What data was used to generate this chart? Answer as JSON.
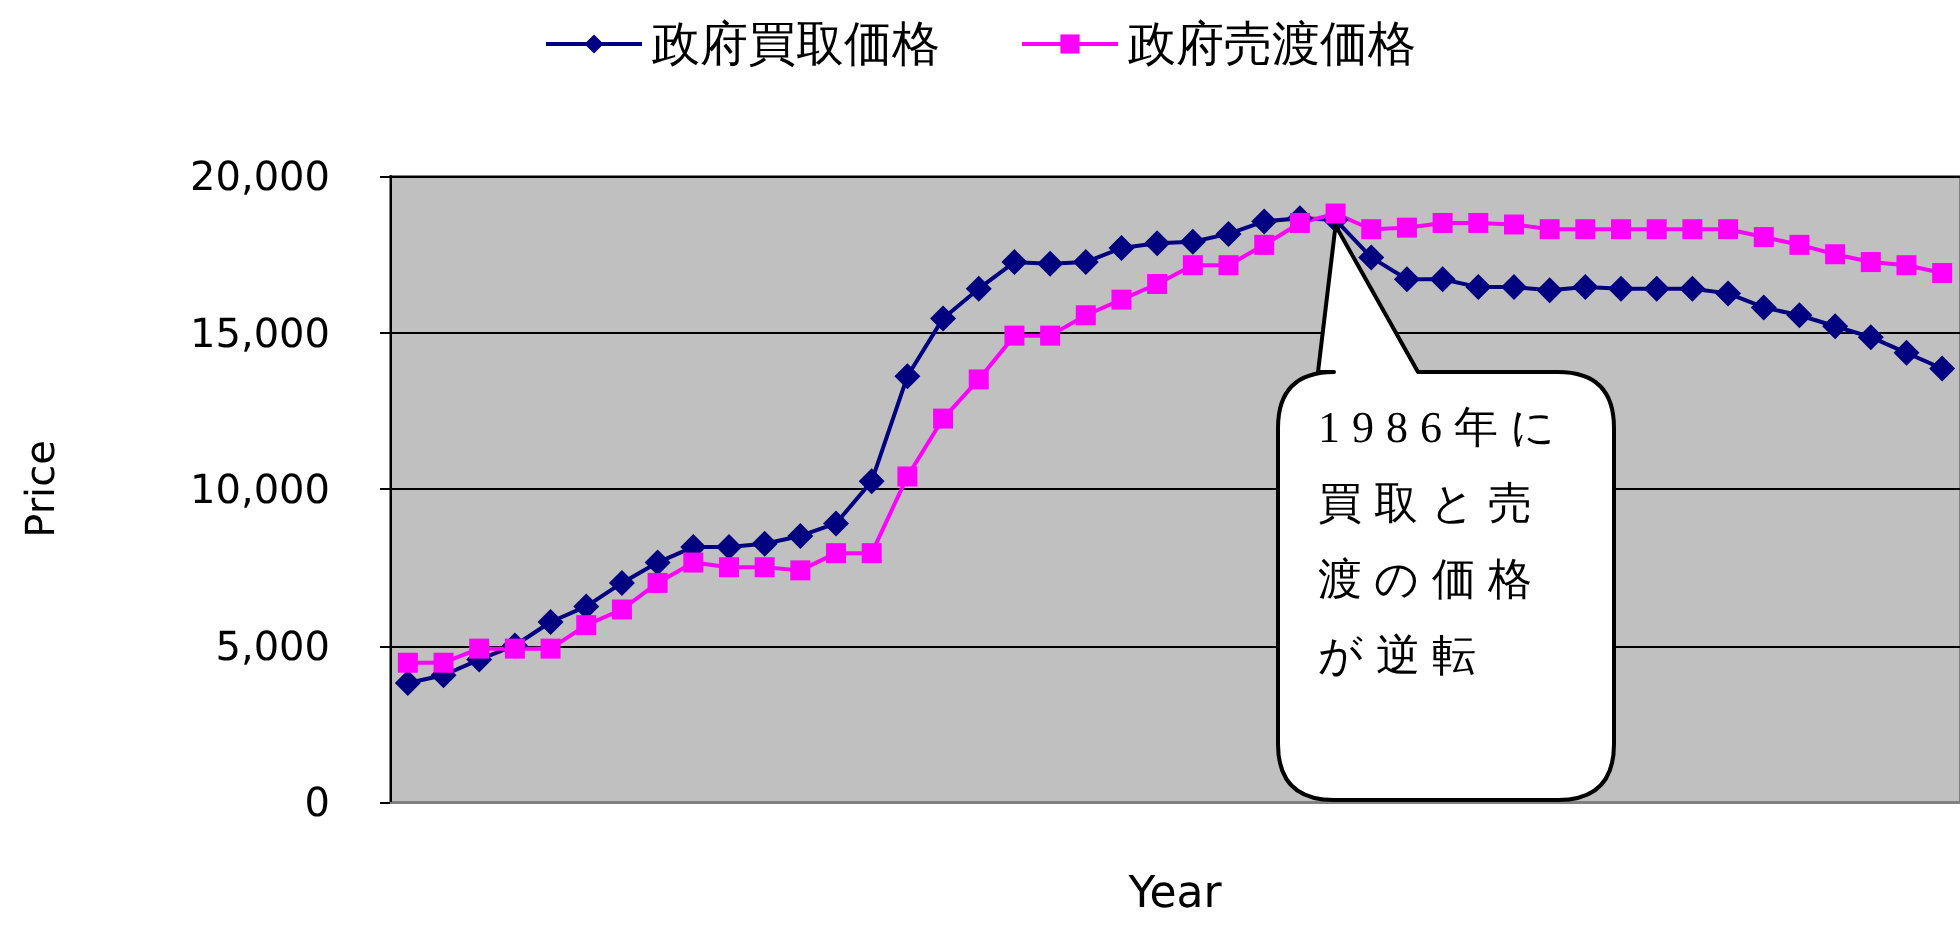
{
  "chart_data": {
    "type": "line",
    "xlabel": "Year",
    "ylabel": "Price",
    "categories": [
      null,
      null,
      null,
      null,
      null,
      null,
      null,
      null,
      null,
      null,
      null,
      null,
      null,
      null,
      null,
      null,
      null,
      null,
      null,
      null,
      null,
      null,
      null,
      null,
      null,
      null,
      null,
      null,
      null,
      null,
      null,
      null,
      null,
      null,
      null,
      null,
      null,
      null,
      null,
      null,
      null,
      null,
      null,
      null
    ],
    "series": [
      {
        "name": "政府買取価格",
        "color": "#000080",
        "marker": "diamond",
        "values": [
          3800,
          4050,
          4550,
          5000,
          5750,
          6250,
          7000,
          7650,
          8150,
          8150,
          8250,
          8500,
          8900,
          10250,
          13600,
          15450,
          16400,
          17250,
          17200,
          17250,
          17700,
          17850,
          17900,
          18150,
          18550,
          18650,
          18600,
          17400,
          16700,
          16700,
          16450,
          16450,
          16350,
          16450,
          16400,
          16400,
          16400,
          16250,
          15800,
          15550,
          15200,
          14850,
          14350,
          13850
        ]
      },
      {
        "name": "政府売渡価格",
        "color": "#ff00ff",
        "marker": "square",
        "values": [
          4450,
          4450,
          4900,
          4900,
          4900,
          5650,
          6150,
          7000,
          7650,
          7500,
          7500,
          7400,
          7950,
          7950,
          10400,
          12250,
          13500,
          14900,
          14900,
          15550,
          16050,
          16550,
          17150,
          17150,
          17800,
          18500,
          18800,
          18300,
          18350,
          18500,
          18500,
          18450,
          18300,
          18300,
          18300,
          18300,
          18300,
          18300,
          18050,
          17800,
          17500,
          17250,
          17150,
          16900
        ]
      }
    ],
    "ylim": [
      0,
      20000
    ],
    "yticks": [
      {
        "value": 0,
        "label": "0"
      },
      {
        "value": 5000,
        "label": "5,000"
      },
      {
        "value": 10000,
        "label": "10,000"
      },
      {
        "value": 15000,
        "label": "15,000"
      },
      {
        "value": 20000,
        "label": "20,000"
      }
    ],
    "grid": "y",
    "legend": "top",
    "tick_labels": "y",
    "line_style": "solid",
    "annotations": [
      "1986年に買取と売渡の価格が逆転"
    ]
  }
}
